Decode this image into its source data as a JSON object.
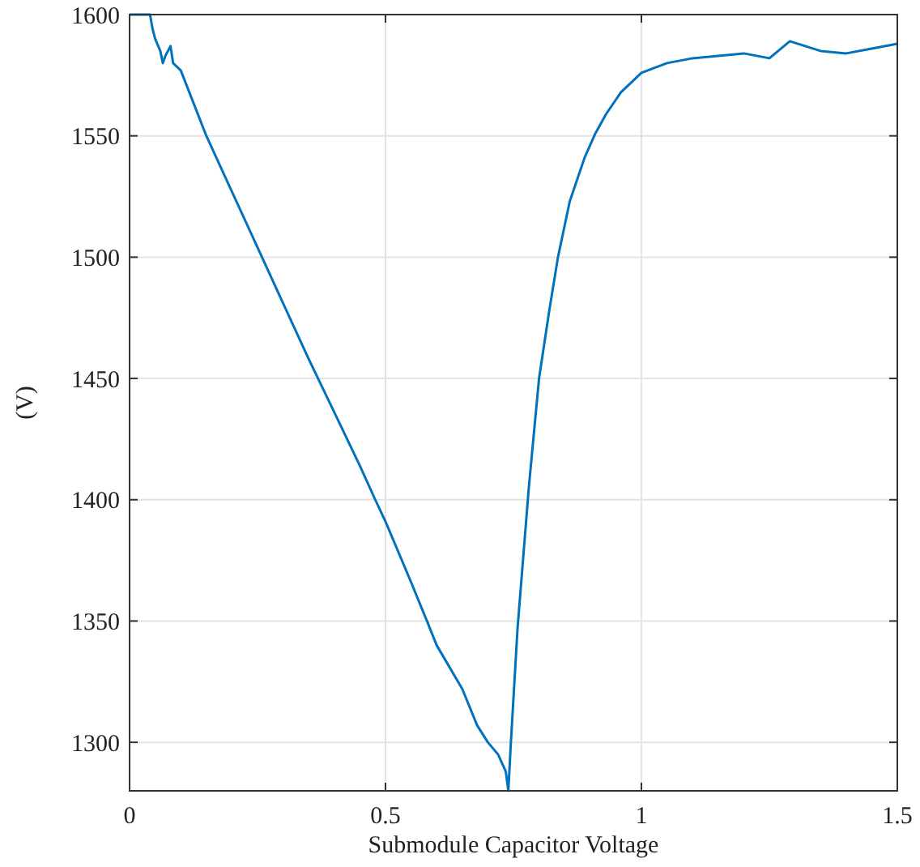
{
  "chart_data": {
    "type": "line",
    "xlabel": "Submodule Capacitor Voltage",
    "ylabel": "(V)",
    "xlim": [
      0,
      1.5
    ],
    "ylim": [
      1280,
      1600
    ],
    "xticks": [
      0,
      0.5,
      1,
      1.5
    ],
    "yticks": [
      1300,
      1350,
      1400,
      1450,
      1500,
      1550,
      1600
    ],
    "grid": true,
    "line_style": "solid",
    "series": [
      {
        "color": "#0072bd",
        "x": [
          0,
          0.04,
          0.045,
          0.05,
          0.06,
          0.065,
          0.07,
          0.08,
          0.085,
          0.1,
          0.15,
          0.2,
          0.25,
          0.3,
          0.35,
          0.4,
          0.45,
          0.48,
          0.5,
          0.55,
          0.581,
          0.6,
          0.65,
          0.679,
          0.7,
          0.72,
          0.735,
          0.74,
          0.745,
          0.758,
          0.78,
          0.8,
          0.82,
          0.837,
          0.86,
          0.889,
          0.91,
          0.931,
          0.96,
          1,
          1.05,
          1.1,
          1.15,
          1.2,
          1.25,
          1.29,
          1.35,
          1.4,
          1.45,
          1.5
        ],
        "values": [
          1600,
          1600,
          1594,
          1590,
          1585,
          1580,
          1583,
          1587,
          1580,
          1577,
          1550,
          1527,
          1504,
          1481,
          1458,
          1436,
          1414,
          1400,
          1391,
          1366,
          1350,
          1340,
          1322,
          1307,
          1300,
          1295,
          1288,
          1280,
          1300,
          1347,
          1405,
          1450,
          1478,
          1500,
          1523,
          1541,
          1551,
          1559,
          1568,
          1576,
          1580,
          1582,
          1583,
          1584,
          1582,
          1589,
          1585,
          1584,
          1586,
          1588
        ]
      }
    ]
  }
}
